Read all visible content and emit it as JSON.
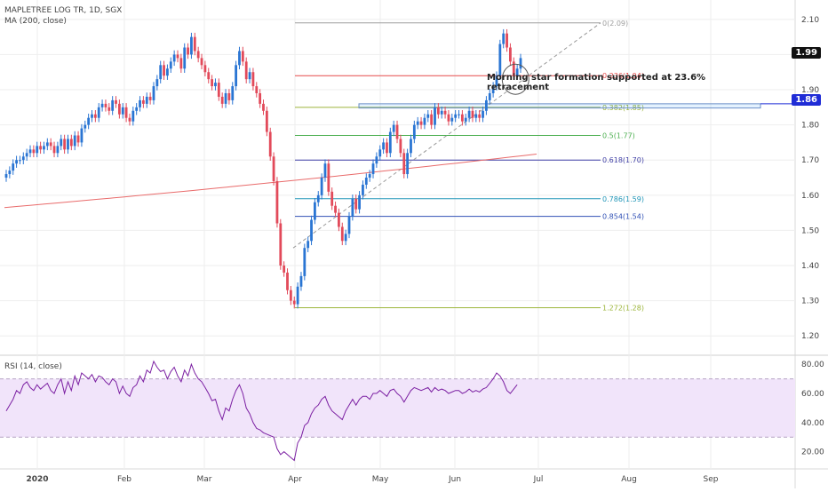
{
  "header": {
    "symbol_line": "MAPLETREE LOG TR, 1D, SGX",
    "ma_line": "MA (200, close)",
    "rsi_line": "RSI (14, close)"
  },
  "annotation": {
    "line1": "Morning star formation supported at 23.6%",
    "line2": "retracement"
  },
  "price_tags": {
    "last": "1.99",
    "level": "1.86"
  },
  "colors": {
    "up": "#2a75d3",
    "down": "#e24a5a",
    "ma": "#e96b6b",
    "rsi": "#7b1fa2",
    "rsi_band": "#f1e4fa",
    "grid": "#eeeeee",
    "level_tag": "#1f2cd6"
  },
  "chart_data": [
    {
      "type": "candlestick",
      "title": "MAPLETREE LOG TR, 1D, SGX",
      "ylim": [
        1.15,
        2.14
      ],
      "yticks": [
        "2.10",
        "2.00",
        "1.90",
        "1.80",
        "1.70",
        "1.60",
        "1.50",
        "1.40",
        "1.30",
        "1.20"
      ],
      "xticks": [
        "2020",
        "Feb",
        "Mar",
        "Apr",
        "May",
        "Jun",
        "Jul",
        "Aug",
        "Sep"
      ],
      "close": [
        1.66,
        1.67,
        1.69,
        1.7,
        1.7,
        1.71,
        1.72,
        1.73,
        1.72,
        1.74,
        1.73,
        1.74,
        1.75,
        1.74,
        1.72,
        1.74,
        1.76,
        1.73,
        1.76,
        1.74,
        1.77,
        1.75,
        1.79,
        1.8,
        1.82,
        1.83,
        1.82,
        1.85,
        1.86,
        1.85,
        1.84,
        1.87,
        1.86,
        1.83,
        1.85,
        1.82,
        1.81,
        1.84,
        1.85,
        1.87,
        1.86,
        1.88,
        1.87,
        1.91,
        1.93,
        1.97,
        1.94,
        1.96,
        1.98,
        2.0,
        1.99,
        1.96,
        2.02,
        2.0,
        2.05,
        2.01,
        1.99,
        1.97,
        1.95,
        1.93,
        1.91,
        1.92,
        1.88,
        1.86,
        1.89,
        1.87,
        1.91,
        1.97,
        2.01,
        1.98,
        1.93,
        1.95,
        1.91,
        1.89,
        1.86,
        1.84,
        1.78,
        1.71,
        1.64,
        1.52,
        1.4,
        1.38,
        1.33,
        1.3,
        1.29,
        1.34,
        1.37,
        1.45,
        1.47,
        1.53,
        1.58,
        1.6,
        1.65,
        1.69,
        1.61,
        1.57,
        1.55,
        1.51,
        1.47,
        1.49,
        1.54,
        1.59,
        1.56,
        1.6,
        1.63,
        1.65,
        1.66,
        1.69,
        1.71,
        1.73,
        1.75,
        1.72,
        1.78,
        1.8,
        1.76,
        1.72,
        1.66,
        1.72,
        1.76,
        1.8,
        1.81,
        1.8,
        1.82,
        1.83,
        1.8,
        1.85,
        1.83,
        1.84,
        1.83,
        1.81,
        1.82,
        1.83,
        1.83,
        1.81,
        1.82,
        1.84,
        1.82,
        1.83,
        1.82,
        1.84,
        1.87,
        1.89,
        1.91,
        1.94,
        2.03,
        2.06,
        2.02,
        1.98,
        1.94,
        1.96,
        1.99
      ],
      "ma200": {
        "start": 1.565,
        "end": 1.717
      },
      "fibonacci": [
        {
          "label": "0(2.09)",
          "value": 2.09,
          "color": "#9e9e9e"
        },
        {
          "label": "0.236(1.94)",
          "value": 1.94,
          "color": "#e64a4a"
        },
        {
          "label": "0.382(1.85)",
          "value": 1.85,
          "color": "#9cb53b"
        },
        {
          "label": "0.5(1.77)",
          "value": 1.77,
          "color": "#4caf50"
        },
        {
          "label": "0.618(1.70)",
          "value": 1.7,
          "color": "#3f3fa5"
        },
        {
          "label": "0.786(1.59)",
          "value": 1.59,
          "color": "#2196b8"
        },
        {
          "label": "0.854(1.54)",
          "value": 1.54,
          "color": "#3050b5"
        },
        {
          "label": "1.272(1.28)",
          "value": 1.28,
          "color": "#9cb53b"
        }
      ],
      "support_zone": {
        "low": 1.848,
        "high": 1.86
      },
      "trendline": {
        "from": 1.45,
        "to": 2.09
      }
    },
    {
      "type": "line",
      "title": "RSI (14, close)",
      "ylim": [
        10,
        85
      ],
      "yticks": [
        "80.00",
        "60.00",
        "40.00",
        "20.00"
      ],
      "band": [
        30,
        70
      ],
      "values": [
        48,
        52,
        56,
        62,
        60,
        66,
        68,
        64,
        62,
        66,
        63,
        65,
        67,
        62,
        60,
        66,
        70,
        60,
        68,
        62,
        72,
        66,
        74,
        72,
        70,
        73,
        68,
        72,
        71,
        68,
        66,
        70,
        68,
        60,
        65,
        60,
        58,
        64,
        66,
        72,
        68,
        76,
        74,
        82,
        78,
        75,
        76,
        70,
        75,
        78,
        72,
        68,
        76,
        72,
        80,
        74,
        70,
        68,
        64,
        60,
        55,
        56,
        48,
        42,
        50,
        48,
        56,
        62,
        66,
        60,
        50,
        46,
        40,
        36,
        35,
        33,
        32,
        31,
        30,
        22,
        18,
        20,
        18,
        16,
        14,
        26,
        30,
        38,
        40,
        46,
        50,
        52,
        56,
        58,
        52,
        48,
        46,
        44,
        42,
        48,
        52,
        56,
        52,
        56,
        58,
        58,
        56,
        60,
        60,
        62,
        60,
        58,
        62,
        63,
        60,
        58,
        54,
        58,
        62,
        64,
        63,
        62,
        63,
        64,
        61,
        64,
        62,
        63,
        62,
        60,
        61,
        62,
        62,
        60,
        61,
        63,
        61,
        62,
        61,
        63,
        64,
        67,
        70,
        74,
        72,
        68,
        62,
        60,
        63,
        66
      ]
    }
  ]
}
